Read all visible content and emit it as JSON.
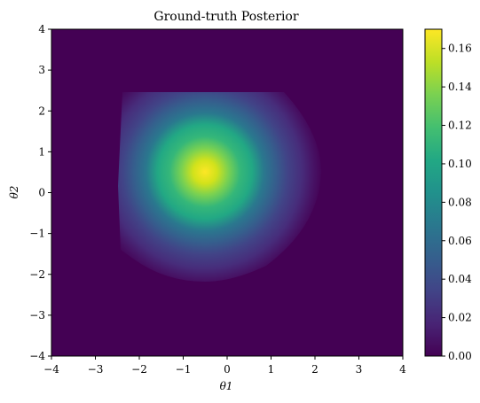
{
  "chart_data": {
    "type": "heatmap",
    "title": "Ground-truth Posterior",
    "xlabel": "θ1",
    "ylabel": "θ2",
    "xlim": [
      -4,
      4
    ],
    "ylim": [
      -4,
      4
    ],
    "xticks": [
      "−4",
      "−3",
      "−2",
      "−1",
      "0",
      "1",
      "2",
      "3",
      "4"
    ],
    "yticks": [
      "−4",
      "−3",
      "−2",
      "−1",
      "0",
      "1",
      "2",
      "3",
      "4"
    ],
    "colormap": "viridis",
    "colorbar": {
      "range": [
        0,
        0.17
      ],
      "ticks": [
        "0.00",
        "0.02",
        "0.04",
        "0.06",
        "0.08",
        "0.10",
        "0.12",
        "0.14",
        "0.16"
      ]
    },
    "peak": {
      "theta1": -0.5,
      "theta2": 0.5,
      "value": 0.17
    },
    "support": {
      "theta1_min": -2.5,
      "theta2_max": 2.4
    },
    "grid": false
  }
}
